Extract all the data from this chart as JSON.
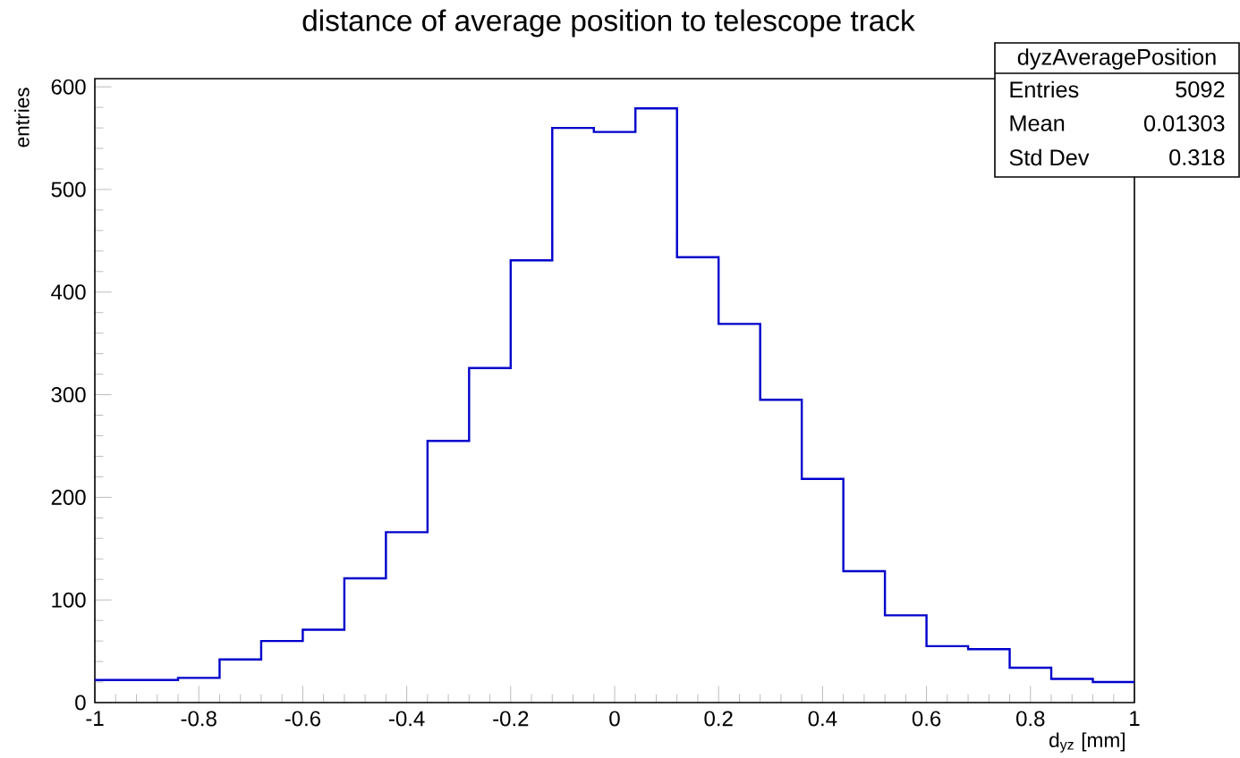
{
  "chart_data": {
    "type": "histogram",
    "title": "distance of average position to telescope track",
    "xlabel": "d$_{yz}$ [mm]",
    "ylabel": "entries",
    "color": "#0000cc",
    "bins": [
      -1,
      -0.92,
      -0.84,
      -0.76,
      -0.68,
      -0.6,
      -0.52,
      -0.44,
      -0.36,
      -0.28,
      -0.2,
      -0.12,
      -0.04,
      0.04,
      0.12,
      0.2,
      0.28,
      0.36,
      0.44,
      0.52,
      0.6,
      0.68,
      0.76,
      0.84,
      0.92,
      1
    ],
    "values": [
      22,
      22,
      24,
      42,
      60,
      71,
      121,
      166,
      255,
      326,
      431,
      560,
      556,
      579,
      434,
      369,
      295,
      218,
      128,
      85,
      55,
      52,
      34,
      23,
      20
    ],
    "xlim": [
      -1,
      1
    ],
    "ylim": [
      0,
      608
    ],
    "xticks": [
      -1,
      -0.8,
      -0.6,
      -0.4,
      -0.2,
      0,
      0.2,
      0.4,
      0.6,
      0.8,
      1
    ],
    "yticks": [
      0,
      100,
      200,
      300,
      400,
      500,
      600
    ],
    "grid": false,
    "annotations": [
      "dyzAveragePosition",
      "Entries",
      "5092",
      "Mean",
      "0.01303",
      "Std Dev",
      "0.318"
    ]
  }
}
